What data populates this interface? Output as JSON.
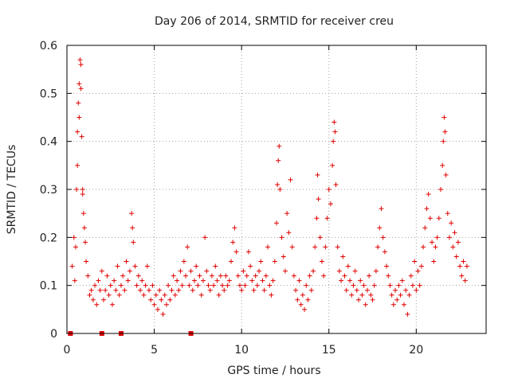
{
  "chart_data": {
    "type": "scatter",
    "title": "Day 206 of 2014, SRMTID for receiver creu",
    "xlabel": "GPS time / hours",
    "ylabel": "SRMTID / TECUs",
    "xlim": [
      0,
      24
    ],
    "ylim": [
      0,
      0.6
    ],
    "xticks": [
      0,
      5,
      10,
      15,
      20
    ],
    "xtick_labels": [
      "0",
      "5",
      "10",
      "15",
      "20"
    ],
    "yticks": [
      0,
      0.1,
      0.2,
      0.3,
      0.4,
      0.5,
      0.6
    ],
    "ytick_labels": [
      "0",
      "0.1",
      "0.2",
      "0.3",
      "0.4",
      "0.5",
      "0.6"
    ],
    "grid": true,
    "marker": "+",
    "color": "#e00000",
    "series": [
      {
        "name": "SRMTID",
        "points": [
          [
            0.1,
            0.0
          ],
          [
            0.3,
            0.14
          ],
          [
            0.4,
            0.2
          ],
          [
            0.45,
            0.11
          ],
          [
            0.5,
            0.18
          ],
          [
            0.55,
            0.3
          ],
          [
            0.6,
            0.42
          ],
          [
            0.65,
            0.48
          ],
          [
            0.7,
            0.52
          ],
          [
            0.75,
            0.57
          ],
          [
            0.8,
            0.51
          ],
          [
            0.85,
            0.41
          ],
          [
            0.9,
            0.3
          ],
          [
            0.95,
            0.25
          ],
          [
            1.0,
            0.22
          ],
          [
            1.05,
            0.19
          ],
          [
            1.1,
            0.15
          ],
          [
            0.6,
            0.35
          ],
          [
            0.7,
            0.45
          ],
          [
            0.8,
            0.56
          ],
          [
            0.9,
            0.29
          ],
          [
            1.2,
            0.12
          ],
          [
            1.3,
            0.08
          ],
          [
            1.4,
            0.09
          ],
          [
            1.5,
            0.07
          ],
          [
            1.6,
            0.1
          ],
          [
            1.7,
            0.06
          ],
          [
            1.8,
            0.11
          ],
          [
            1.9,
            0.09
          ],
          [
            2.0,
            0.13
          ],
          [
            2.1,
            0.07
          ],
          [
            2.2,
            0.09
          ],
          [
            2.3,
            0.12
          ],
          [
            2.4,
            0.08
          ],
          [
            2.5,
            0.1
          ],
          [
            2.6,
            0.06
          ],
          [
            2.7,
            0.11
          ],
          [
            2.8,
            0.09
          ],
          [
            2.9,
            0.14
          ],
          [
            3.0,
            0.08
          ],
          [
            3.1,
            0.1
          ],
          [
            3.2,
            0.12
          ],
          [
            3.3,
            0.09
          ],
          [
            3.4,
            0.15
          ],
          [
            3.5,
            0.11
          ],
          [
            3.6,
            0.13
          ],
          [
            3.7,
            0.25
          ],
          [
            3.75,
            0.22
          ],
          [
            3.8,
            0.19
          ],
          [
            3.9,
            0.14
          ],
          [
            4.0,
            0.1
          ],
          [
            4.1,
            0.12
          ],
          [
            4.2,
            0.09
          ],
          [
            4.3,
            0.11
          ],
          [
            4.4,
            0.08
          ],
          [
            4.5,
            0.1
          ],
          [
            4.6,
            0.14
          ],
          [
            4.7,
            0.09
          ],
          [
            4.8,
            0.07
          ],
          [
            4.9,
            0.1
          ],
          [
            5.0,
            0.06
          ],
          [
            5.1,
            0.08
          ],
          [
            5.2,
            0.05
          ],
          [
            5.3,
            0.09
          ],
          [
            5.4,
            0.07
          ],
          [
            5.5,
            0.04
          ],
          [
            5.6,
            0.08
          ],
          [
            5.7,
            0.06
          ],
          [
            5.8,
            0.1
          ],
          [
            5.9,
            0.07
          ],
          [
            6.0,
            0.09
          ],
          [
            6.1,
            0.12
          ],
          [
            6.2,
            0.08
          ],
          [
            6.3,
            0.11
          ],
          [
            6.4,
            0.09
          ],
          [
            6.5,
            0.13
          ],
          [
            6.6,
            0.1
          ],
          [
            6.7,
            0.15
          ],
          [
            6.8,
            0.12
          ],
          [
            6.9,
            0.18
          ],
          [
            7.0,
            0.1
          ],
          [
            7.1,
            0.13
          ],
          [
            7.2,
            0.09
          ],
          [
            7.3,
            0.11
          ],
          [
            7.4,
            0.14
          ],
          [
            7.5,
            0.1
          ],
          [
            7.6,
            0.12
          ],
          [
            7.7,
            0.08
          ],
          [
            7.8,
            0.11
          ],
          [
            7.9,
            0.2
          ],
          [
            8.0,
            0.13
          ],
          [
            8.1,
            0.1
          ],
          [
            8.2,
            0.09
          ],
          [
            8.3,
            0.12
          ],
          [
            8.4,
            0.1
          ],
          [
            8.5,
            0.14
          ],
          [
            8.6,
            0.11
          ],
          [
            8.7,
            0.08
          ],
          [
            8.8,
            0.12
          ],
          [
            8.9,
            0.1
          ],
          [
            9.0,
            0.09
          ],
          [
            9.1,
            0.12
          ],
          [
            9.2,
            0.1
          ],
          [
            9.3,
            0.11
          ],
          [
            9.4,
            0.15
          ],
          [
            9.5,
            0.19
          ],
          [
            9.6,
            0.22
          ],
          [
            9.7,
            0.17
          ],
          [
            9.8,
            0.12
          ],
          [
            9.9,
            0.1
          ],
          [
            10.0,
            0.09
          ],
          [
            10.1,
            0.13
          ],
          [
            10.2,
            0.1
          ],
          [
            10.3,
            0.12
          ],
          [
            10.4,
            0.17
          ],
          [
            10.5,
            0.14
          ],
          [
            10.6,
            0.11
          ],
          [
            10.7,
            0.09
          ],
          [
            10.8,
            0.12
          ],
          [
            10.9,
            0.1
          ],
          [
            11.0,
            0.13
          ],
          [
            11.1,
            0.15
          ],
          [
            11.2,
            0.11
          ],
          [
            11.3,
            0.09
          ],
          [
            11.4,
            0.12
          ],
          [
            11.5,
            0.18
          ],
          [
            11.6,
            0.1
          ],
          [
            11.7,
            0.08
          ],
          [
            11.8,
            0.11
          ],
          [
            11.9,
            0.15
          ],
          [
            12.0,
            0.23
          ],
          [
            12.05,
            0.31
          ],
          [
            12.1,
            0.36
          ],
          [
            12.15,
            0.39
          ],
          [
            12.2,
            0.3
          ],
          [
            12.3,
            0.2
          ],
          [
            12.4,
            0.16
          ],
          [
            12.5,
            0.13
          ],
          [
            12.6,
            0.25
          ],
          [
            12.7,
            0.21
          ],
          [
            12.8,
            0.32
          ],
          [
            12.9,
            0.18
          ],
          [
            13.0,
            0.12
          ],
          [
            13.1,
            0.09
          ],
          [
            13.2,
            0.07
          ],
          [
            13.3,
            0.11
          ],
          [
            13.4,
            0.06
          ],
          [
            13.5,
            0.08
          ],
          [
            13.6,
            0.05
          ],
          [
            13.7,
            0.1
          ],
          [
            13.8,
            0.07
          ],
          [
            13.9,
            0.12
          ],
          [
            14.0,
            0.09
          ],
          [
            14.1,
            0.13
          ],
          [
            14.2,
            0.18
          ],
          [
            14.3,
            0.24
          ],
          [
            14.35,
            0.33
          ],
          [
            14.4,
            0.28
          ],
          [
            14.5,
            0.2
          ],
          [
            14.6,
            0.15
          ],
          [
            14.7,
            0.12
          ],
          [
            14.8,
            0.18
          ],
          [
            14.9,
            0.24
          ],
          [
            15.0,
            0.3
          ],
          [
            15.1,
            0.27
          ],
          [
            15.2,
            0.35
          ],
          [
            15.25,
            0.4
          ],
          [
            15.3,
            0.44
          ],
          [
            15.35,
            0.42
          ],
          [
            15.4,
            0.31
          ],
          [
            15.5,
            0.18
          ],
          [
            15.6,
            0.13
          ],
          [
            15.7,
            0.11
          ],
          [
            15.8,
            0.16
          ],
          [
            15.9,
            0.12
          ],
          [
            16.0,
            0.09
          ],
          [
            16.1,
            0.14
          ],
          [
            16.2,
            0.11
          ],
          [
            16.3,
            0.08
          ],
          [
            16.4,
            0.1
          ],
          [
            16.5,
            0.13
          ],
          [
            16.6,
            0.09
          ],
          [
            16.7,
            0.07
          ],
          [
            16.8,
            0.11
          ],
          [
            16.9,
            0.08
          ],
          [
            17.0,
            0.1
          ],
          [
            17.1,
            0.06
          ],
          [
            17.2,
            0.09
          ],
          [
            17.3,
            0.12
          ],
          [
            17.4,
            0.08
          ],
          [
            17.5,
            0.07
          ],
          [
            17.6,
            0.1
          ],
          [
            17.7,
            0.13
          ],
          [
            17.8,
            0.18
          ],
          [
            17.9,
            0.22
          ],
          [
            18.0,
            0.26
          ],
          [
            18.1,
            0.2
          ],
          [
            18.2,
            0.17
          ],
          [
            18.3,
            0.14
          ],
          [
            18.4,
            0.12
          ],
          [
            18.5,
            0.1
          ],
          [
            18.6,
            0.08
          ],
          [
            18.7,
            0.06
          ],
          [
            18.8,
            0.09
          ],
          [
            18.9,
            0.07
          ],
          [
            19.0,
            0.1
          ],
          [
            19.1,
            0.08
          ],
          [
            19.2,
            0.11
          ],
          [
            19.3,
            0.06
          ],
          [
            19.4,
            0.09
          ],
          [
            19.5,
            0.04
          ],
          [
            19.6,
            0.08
          ],
          [
            19.7,
            0.12
          ],
          [
            19.8,
            0.1
          ],
          [
            19.9,
            0.15
          ],
          [
            20.0,
            0.09
          ],
          [
            20.1,
            0.13
          ],
          [
            20.2,
            0.1
          ],
          [
            20.3,
            0.14
          ],
          [
            20.4,
            0.18
          ],
          [
            20.5,
            0.22
          ],
          [
            20.6,
            0.26
          ],
          [
            20.7,
            0.29
          ],
          [
            20.8,
            0.24
          ],
          [
            20.9,
            0.19
          ],
          [
            21.0,
            0.15
          ],
          [
            21.1,
            0.18
          ],
          [
            21.2,
            0.2
          ],
          [
            21.3,
            0.24
          ],
          [
            21.4,
            0.3
          ],
          [
            21.5,
            0.35
          ],
          [
            21.55,
            0.4
          ],
          [
            21.6,
            0.45
          ],
          [
            21.65,
            0.42
          ],
          [
            21.7,
            0.33
          ],
          [
            21.8,
            0.25
          ],
          [
            21.9,
            0.2
          ],
          [
            22.0,
            0.23
          ],
          [
            22.1,
            0.18
          ],
          [
            22.2,
            0.21
          ],
          [
            22.3,
            0.16
          ],
          [
            22.4,
            0.19
          ],
          [
            22.5,
            0.14
          ],
          [
            22.6,
            0.12
          ],
          [
            22.7,
            0.15
          ],
          [
            22.8,
            0.11
          ],
          [
            22.9,
            0.14
          ]
        ]
      }
    ],
    "zero_markers": [
      0.2,
      2.0,
      3.1,
      7.1
    ]
  }
}
